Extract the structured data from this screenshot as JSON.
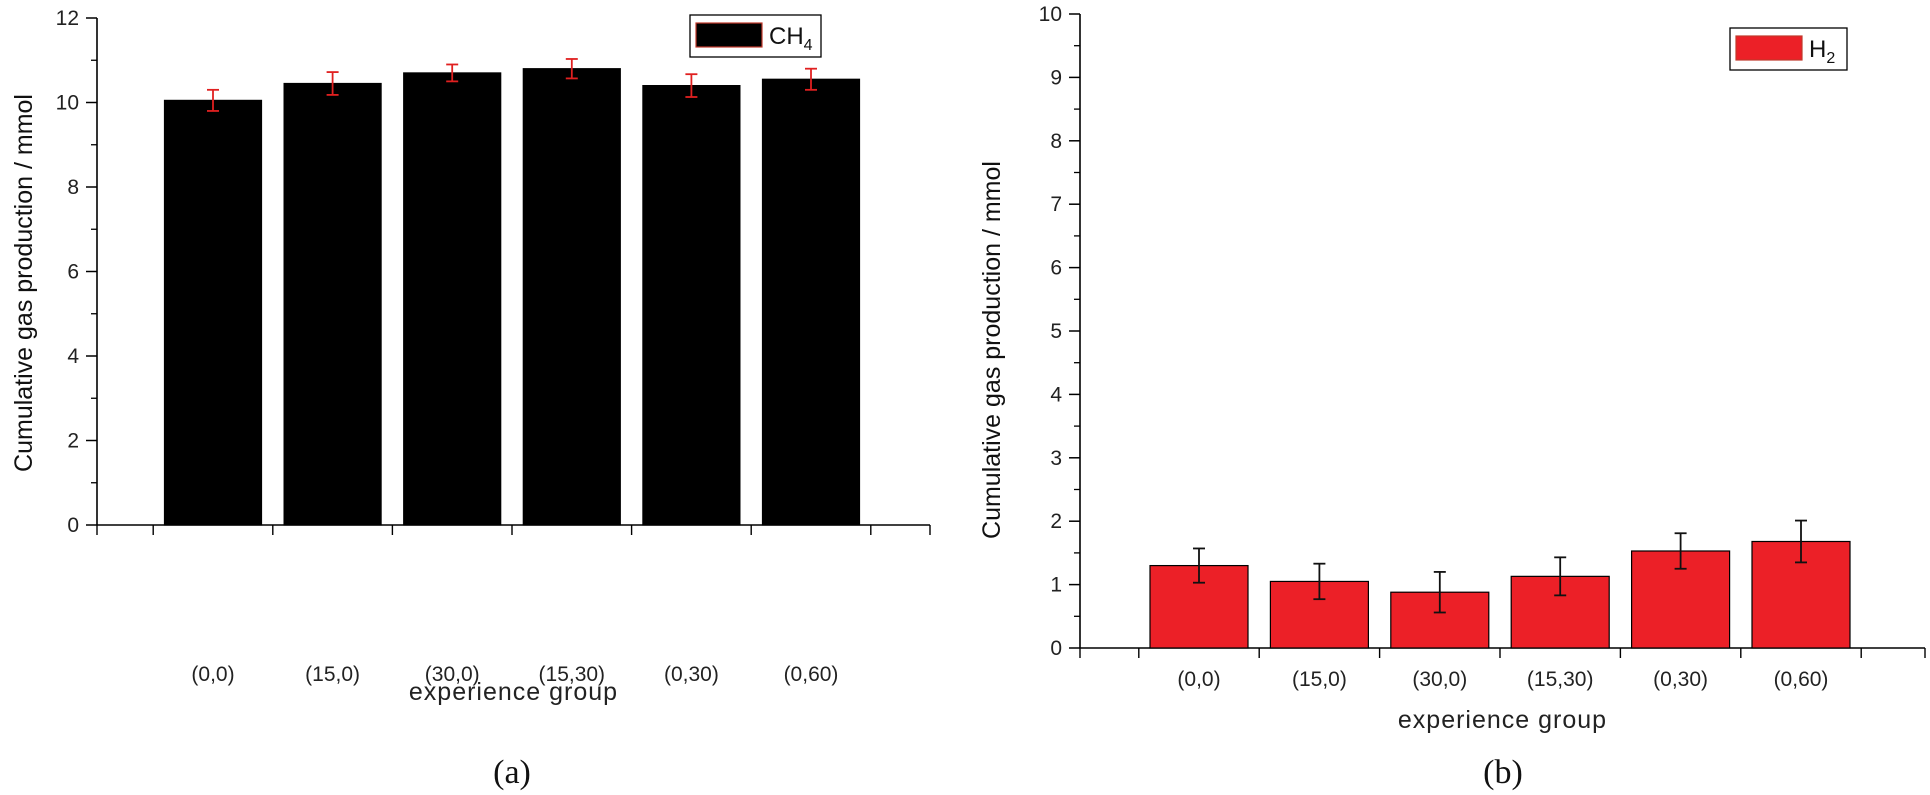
{
  "chart_data": [
    {
      "type": "bar",
      "panel_label": "(a)",
      "categories": [
        "(0,0)",
        "(15,0)",
        "(30,0)",
        "(15,30)",
        "(0,30)",
        "(0,60)"
      ],
      "series": [
        {
          "name": "CH4",
          "name_main": "CH",
          "name_sub": "4",
          "values": [
            10.05,
            10.45,
            10.7,
            10.8,
            10.4,
            10.55
          ],
          "errors": [
            0.25,
            0.27,
            0.2,
            0.23,
            0.27,
            0.25
          ],
          "color": "#000000",
          "error_color": "#e02020"
        }
      ],
      "xlabel": "experience group",
      "ylabel": "Cumulative gas production / mmol",
      "ylim": [
        0,
        12
      ],
      "yticks": [
        0,
        2,
        4,
        6,
        8,
        10,
        12
      ],
      "grid": false,
      "legend_position": "top-right"
    },
    {
      "type": "bar",
      "panel_label": "(b)",
      "categories": [
        "(0,0)",
        "(15,0)",
        "(30,0)",
        "(15,30)",
        "(0,30)",
        "(0,60)"
      ],
      "series": [
        {
          "name": "H2",
          "name_main": "H",
          "name_sub": "2",
          "values": [
            1.3,
            1.05,
            0.88,
            1.13,
            1.53,
            1.68
          ],
          "errors": [
            0.27,
            0.28,
            0.32,
            0.3,
            0.28,
            0.33
          ],
          "color": "#ec2027",
          "error_color": "#111111"
        }
      ],
      "xlabel": "experience group",
      "ylabel": "Cumulative gas production / mmol",
      "ylim": [
        0,
        10
      ],
      "yticks": [
        0,
        1,
        2,
        3,
        4,
        5,
        6,
        7,
        8,
        9,
        10
      ],
      "grid": false,
      "legend_position": "top-right"
    }
  ]
}
